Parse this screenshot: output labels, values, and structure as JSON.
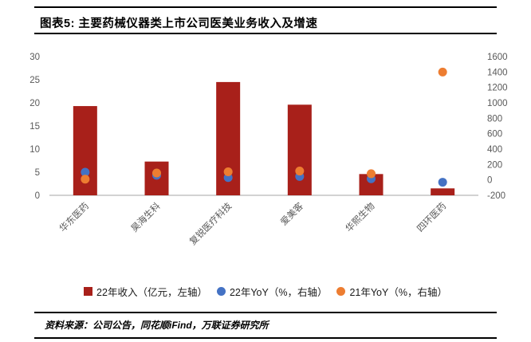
{
  "header": {
    "title": "图表5: 主要药械仪器类上市公司医美业务收入及增速"
  },
  "footer": {
    "source": "资料来源：公司公告，同花顺iFind，万联证券研究所"
  },
  "colors": {
    "bar": "#A8201A",
    "yoy_2022": "#4472C4",
    "yoy_2021": "#ED7D31",
    "axis_text": "#595959",
    "rule": "#000000"
  },
  "chart_data": {
    "type": "bar",
    "title": "图表5: 主要药械仪器类上市公司医美业务收入及增速",
    "categories": [
      "华东医药",
      "昊海生科",
      "复锐医疗科技",
      "爱美客",
      "华熙生物",
      "四环医药"
    ],
    "series": [
      {
        "name": "22年收入（亿元，左轴）",
        "type": "bar",
        "axis": "left",
        "color": "#A8201A",
        "values": [
          19.3,
          7.3,
          24.5,
          19.6,
          4.6,
          1.5
        ]
      },
      {
        "name": "22年YoY（%，右轴）",
        "type": "scatter",
        "axis": "right",
        "color": "#4472C4",
        "values": [
          100,
          60,
          30,
          45,
          15,
          -30
        ]
      },
      {
        "name": "21年YoY（%，右轴）",
        "type": "scatter",
        "axis": "right",
        "color": "#ED7D31",
        "values": [
          10,
          90,
          105,
          115,
          80,
          1400
        ]
      }
    ],
    "left_axis": {
      "min": 0,
      "max": 30,
      "ticks": [
        0,
        5,
        10,
        15,
        20,
        25,
        30
      ]
    },
    "right_axis": {
      "min": -200,
      "max": 1600,
      "ticks": [
        -200,
        0,
        200,
        400,
        600,
        800,
        1000,
        1200,
        1400,
        1600
      ]
    },
    "grid": false,
    "legend_position": "bottom"
  }
}
